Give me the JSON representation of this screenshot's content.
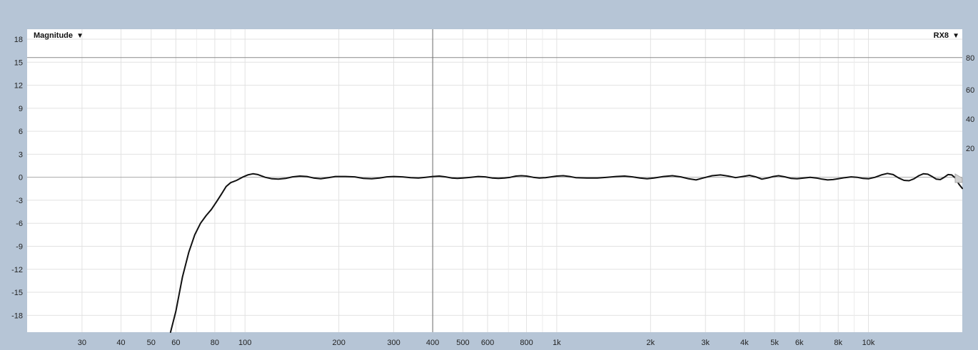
{
  "toolbar": {
    "magnitude_label": "Magnitude",
    "reference_label": "RX8",
    "dropdown_caret": "▼"
  },
  "chart_data": {
    "type": "line",
    "x_scale": "log",
    "xlim": [
      20,
      20000
    ],
    "ylim": [
      -20.2,
      19.3
    ],
    "y_ticks": [
      18,
      15,
      12,
      9,
      6,
      3,
      0,
      -3,
      -6,
      -9,
      -12,
      -15,
      -18
    ],
    "y_tick_labels": [
      "18",
      "15",
      "12",
      "9",
      "6",
      "3",
      "0",
      "-3",
      "-6",
      "-9",
      "-12",
      "-15",
      "-18"
    ],
    "right_axis_ticks": [
      {
        "label": "80",
        "y": 15.6
      },
      {
        "label": "60",
        "y": 11.4
      },
      {
        "label": "40",
        "y": 7.6
      },
      {
        "label": "20",
        "y": 3.8
      }
    ],
    "x_ticks": [
      {
        "label": "30",
        "x": 30
      },
      {
        "label": "40",
        "x": 40
      },
      {
        "label": "50",
        "x": 50
      },
      {
        "label": "60",
        "x": 60
      },
      {
        "label": "80",
        "x": 80
      },
      {
        "label": "100",
        "x": 100
      },
      {
        "label": "200",
        "x": 200
      },
      {
        "label": "300",
        "x": 300
      },
      {
        "label": "400",
        "x": 400
      },
      {
        "label": "500",
        "x": 500
      },
      {
        "label": "600",
        "x": 600
      },
      {
        "label": "800",
        "x": 800
      },
      {
        "label": "1k",
        "x": 1000
      },
      {
        "label": "2k",
        "x": 2000
      },
      {
        "label": "3k",
        "x": 3000
      },
      {
        "label": "4k",
        "x": 4000
      },
      {
        "label": "5k",
        "x": 5000
      },
      {
        "label": "6k",
        "x": 6000
      },
      {
        "label": "8k",
        "x": 8000
      },
      {
        "label": "10k",
        "x": 10000
      }
    ],
    "x_minor_lines": [
      70,
      90,
      700,
      900,
      7000,
      9000
    ],
    "cursor_line_x": 400,
    "reference_line_y": 15.6,
    "grid": true,
    "series": [
      {
        "color": "#111111",
        "points": [
          [
            57.7,
            -20.2
          ],
          [
            60,
            -17.5
          ],
          [
            63,
            -13.0
          ],
          [
            66,
            -9.8
          ],
          [
            69,
            -7.5
          ],
          [
            72,
            -6.0
          ],
          [
            75,
            -5.0
          ],
          [
            78,
            -4.2
          ],
          [
            81,
            -3.2
          ],
          [
            84,
            -2.2
          ],
          [
            87,
            -1.2
          ],
          [
            90,
            -0.7
          ],
          [
            94,
            -0.4
          ],
          [
            98,
            0.0
          ],
          [
            102,
            0.3
          ],
          [
            106,
            0.45
          ],
          [
            110,
            0.35
          ],
          [
            116,
            0.0
          ],
          [
            122,
            -0.2
          ],
          [
            128,
            -0.25
          ],
          [
            135,
            -0.15
          ],
          [
            142,
            0.05
          ],
          [
            150,
            0.15
          ],
          [
            158,
            0.1
          ],
          [
            166,
            -0.1
          ],
          [
            175,
            -0.2
          ],
          [
            185,
            -0.05
          ],
          [
            195,
            0.1
          ],
          [
            210,
            0.1
          ],
          [
            225,
            0.05
          ],
          [
            240,
            -0.15
          ],
          [
            255,
            -0.2
          ],
          [
            270,
            -0.1
          ],
          [
            285,
            0.05
          ],
          [
            300,
            0.1
          ],
          [
            320,
            0.05
          ],
          [
            340,
            -0.05
          ],
          [
            360,
            -0.1
          ],
          [
            380,
            0.0
          ],
          [
            400,
            0.1
          ],
          [
            420,
            0.15
          ],
          [
            440,
            0.05
          ],
          [
            460,
            -0.1
          ],
          [
            480,
            -0.15
          ],
          [
            500,
            -0.1
          ],
          [
            530,
            0.0
          ],
          [
            560,
            0.1
          ],
          [
            590,
            0.05
          ],
          [
            620,
            -0.1
          ],
          [
            650,
            -0.15
          ],
          [
            680,
            -0.1
          ],
          [
            710,
            0.0
          ],
          [
            740,
            0.15
          ],
          [
            770,
            0.2
          ],
          [
            800,
            0.15
          ],
          [
            840,
            0.0
          ],
          [
            880,
            -0.1
          ],
          [
            920,
            -0.05
          ],
          [
            960,
            0.05
          ],
          [
            1000,
            0.15
          ],
          [
            1050,
            0.2
          ],
          [
            1100,
            0.1
          ],
          [
            1150,
            -0.05
          ],
          [
            1250,
            -0.1
          ],
          [
            1350,
            -0.1
          ],
          [
            1450,
            0.0
          ],
          [
            1550,
            0.1
          ],
          [
            1650,
            0.15
          ],
          [
            1750,
            0.05
          ],
          [
            1850,
            -0.1
          ],
          [
            1950,
            -0.2
          ],
          [
            2050,
            -0.1
          ],
          [
            2200,
            0.1
          ],
          [
            2350,
            0.2
          ],
          [
            2500,
            0.05
          ],
          [
            2650,
            -0.2
          ],
          [
            2800,
            -0.35
          ],
          [
            2950,
            -0.1
          ],
          [
            3150,
            0.2
          ],
          [
            3350,
            0.3
          ],
          [
            3550,
            0.15
          ],
          [
            3750,
            -0.05
          ],
          [
            3950,
            0.1
          ],
          [
            4150,
            0.25
          ],
          [
            4350,
            0.05
          ],
          [
            4550,
            -0.25
          ],
          [
            4750,
            -0.1
          ],
          [
            4950,
            0.1
          ],
          [
            5150,
            0.2
          ],
          [
            5400,
            0.05
          ],
          [
            5650,
            -0.15
          ],
          [
            5900,
            -0.2
          ],
          [
            6200,
            -0.1
          ],
          [
            6500,
            0.0
          ],
          [
            6800,
            -0.1
          ],
          [
            7100,
            -0.25
          ],
          [
            7400,
            -0.35
          ],
          [
            7700,
            -0.3
          ],
          [
            8000,
            -0.2
          ],
          [
            8400,
            -0.05
          ],
          [
            8800,
            0.05
          ],
          [
            9200,
            0.0
          ],
          [
            9600,
            -0.15
          ],
          [
            10000,
            -0.2
          ],
          [
            10500,
            0.0
          ],
          [
            11000,
            0.3
          ],
          [
            11500,
            0.5
          ],
          [
            12000,
            0.35
          ],
          [
            12500,
            -0.1
          ],
          [
            13000,
            -0.4
          ],
          [
            13500,
            -0.45
          ],
          [
            14000,
            -0.2
          ],
          [
            14500,
            0.2
          ],
          [
            15000,
            0.45
          ],
          [
            15500,
            0.4
          ],
          [
            16000,
            0.1
          ],
          [
            16500,
            -0.25
          ],
          [
            17000,
            -0.3
          ],
          [
            17500,
            0.0
          ],
          [
            18000,
            0.35
          ],
          [
            18500,
            0.3
          ],
          [
            19000,
            -0.1
          ],
          [
            19500,
            -0.9
          ],
          [
            20000,
            -1.45
          ]
        ]
      }
    ]
  }
}
